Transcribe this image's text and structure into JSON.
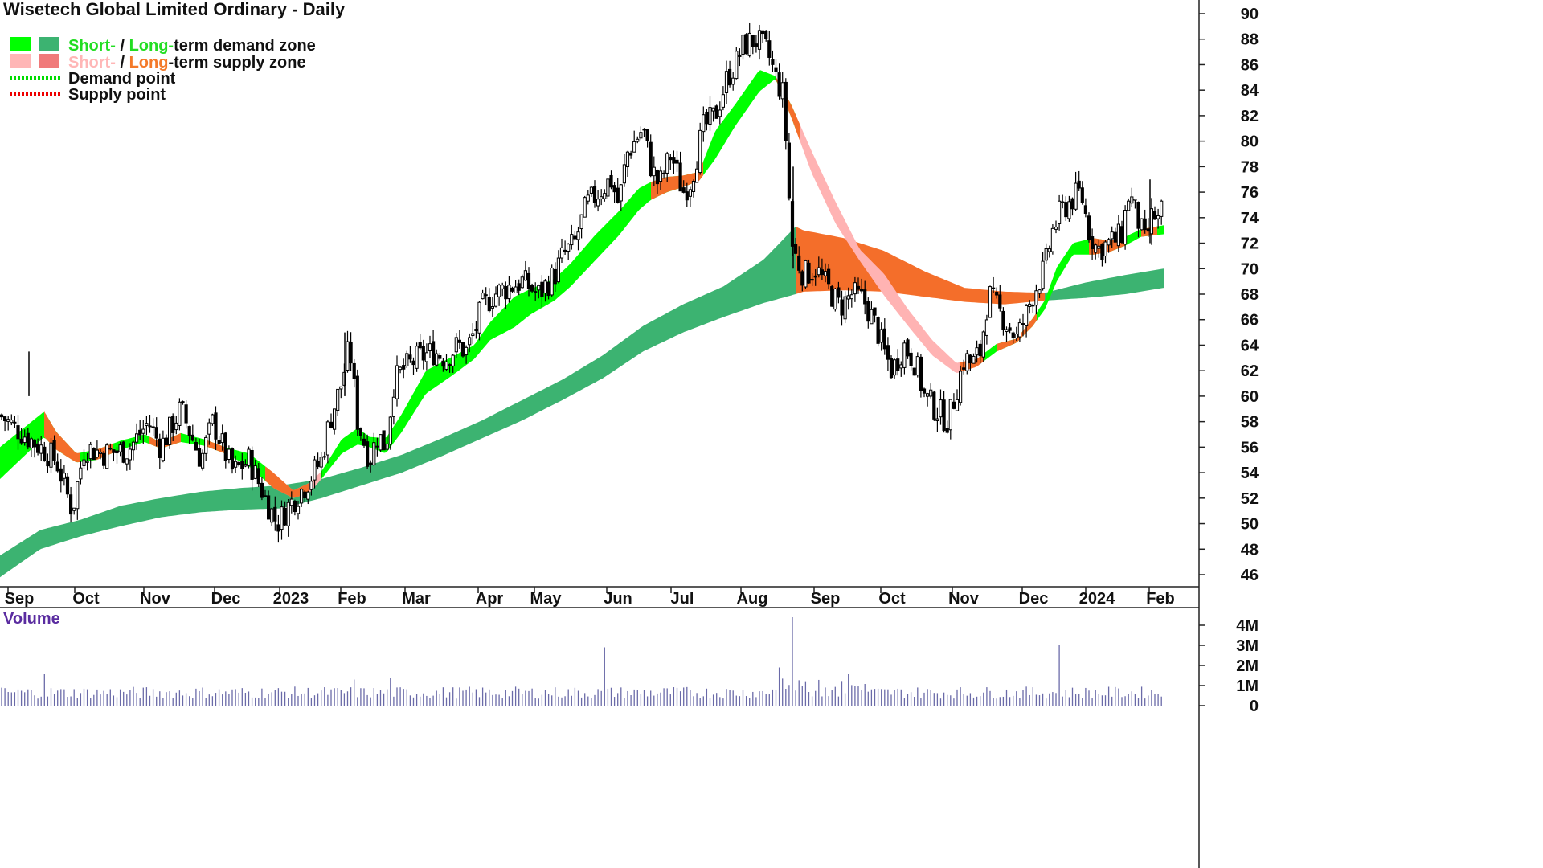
{
  "chart_data": {
    "type": "candlestick",
    "title": "Wisetech Global Limited Ordinary - Daily",
    "legend": [
      {
        "label_parts": [
          {
            "text": "Short-",
            "color": "#22dd22"
          },
          {
            "text": " / ",
            "color": "#111111"
          },
          {
            "text": "Long-",
            "color": "#22dd22"
          },
          {
            "text": "term demand zone",
            "color": "#111111"
          }
        ],
        "swatches": [
          "#00ff00",
          "#3cb371"
        ]
      },
      {
        "label_parts": [
          {
            "text": "Short-",
            "color": "#ffb6b6"
          },
          {
            "text": " / ",
            "color": "#111111"
          },
          {
            "text": "Long-",
            "color": "#f47a2a"
          },
          {
            "text": "-term supply zone",
            "color": "#111111"
          }
        ],
        "swatches": [
          "#ffb6b6",
          "#f08080"
        ]
      },
      {
        "label_parts": [
          {
            "text": "Demand point",
            "color": "#111111"
          }
        ],
        "line": "#00dd00"
      },
      {
        "label_parts": [
          {
            "text": "Supply point",
            "color": "#111111"
          }
        ],
        "line": "#ee0000"
      }
    ],
    "x_ticks": [
      "Sep",
      "Oct",
      "Nov",
      "Dec",
      "2023",
      "Feb",
      "Mar",
      "Apr",
      "May",
      "Jun",
      "Jul",
      "Aug",
      "Sep",
      "Oct",
      "Nov",
      "Dec",
      "2024",
      "Feb"
    ],
    "y_ticks": [
      46,
      48,
      50,
      52,
      54,
      56,
      58,
      60,
      62,
      64,
      66,
      68,
      70,
      72,
      74,
      76,
      78,
      80,
      82,
      84,
      86,
      88,
      90
    ],
    "ylim": [
      44.5,
      91.2
    ],
    "price_path": [
      [
        0,
        58.5
      ],
      [
        20,
        57.5
      ],
      [
        50,
        56
      ],
      [
        70,
        55
      ],
      [
        90,
        51
      ],
      [
        105,
        56
      ],
      [
        130,
        55.5
      ],
      [
        160,
        55.8
      ],
      [
        185,
        58
      ],
      [
        200,
        56
      ],
      [
        225,
        59
      ],
      [
        250,
        55
      ],
      [
        265,
        58
      ],
      [
        290,
        54
      ],
      [
        310,
        55
      ],
      [
        330,
        52
      ],
      [
        345,
        50
      ],
      [
        360,
        51.5
      ],
      [
        380,
        53
      ],
      [
        400,
        55
      ],
      [
        410,
        58
      ],
      [
        425,
        61
      ],
      [
        435,
        64
      ],
      [
        445,
        58
      ],
      [
        460,
        55
      ],
      [
        470,
        57
      ],
      [
        480,
        56
      ],
      [
        490,
        61
      ],
      [
        500,
        62
      ],
      [
        520,
        63
      ],
      [
        540,
        63.5
      ],
      [
        555,
        63
      ],
      [
        570,
        64
      ],
      [
        580,
        63.5
      ],
      [
        590,
        65
      ],
      [
        600,
        67
      ],
      [
        615,
        68
      ],
      [
        630,
        68.5
      ],
      [
        650,
        69
      ],
      [
        670,
        68
      ],
      [
        690,
        69.5
      ],
      [
        700,
        71
      ],
      [
        715,
        72
      ],
      [
        730,
        75
      ],
      [
        745,
        76
      ],
      [
        760,
        77
      ],
      [
        770,
        75
      ],
      [
        780,
        79
      ],
      [
        790,
        80
      ],
      [
        800,
        81
      ],
      [
        810,
        78
      ],
      [
        820,
        76.5
      ],
      [
        835,
        79
      ],
      [
        850,
        76
      ],
      [
        860,
        77
      ],
      [
        875,
        81
      ],
      [
        890,
        82
      ],
      [
        905,
        85
      ],
      [
        915,
        86
      ],
      [
        925,
        87.5
      ],
      [
        940,
        88
      ],
      [
        955,
        87
      ],
      [
        965,
        85
      ],
      [
        975,
        83.5
      ],
      [
        985,
        72
      ],
      [
        990,
        71
      ],
      [
        1000,
        69.5
      ],
      [
        1015,
        70
      ],
      [
        1030,
        68.5
      ],
      [
        1045,
        67
      ],
      [
        1060,
        68
      ],
      [
        1075,
        67.5
      ],
      [
        1090,
        65.5
      ],
      [
        1100,
        63.5
      ],
      [
        1110,
        62
      ],
      [
        1125,
        64
      ],
      [
        1140,
        62.5
      ],
      [
        1150,
        60
      ],
      [
        1165,
        59
      ],
      [
        1180,
        58
      ],
      [
        1190,
        60.5
      ],
      [
        1200,
        63
      ],
      [
        1210,
        62.5
      ],
      [
        1220,
        63.5
      ],
      [
        1230,
        68
      ],
      [
        1240,
        67
      ],
      [
        1250,
        66
      ],
      [
        1265,
        64.5
      ],
      [
        1275,
        66
      ],
      [
        1285,
        68
      ],
      [
        1300,
        70
      ],
      [
        1310,
        73
      ],
      [
        1320,
        74.5
      ],
      [
        1335,
        75.5
      ],
      [
        1345,
        76
      ],
      [
        1355,
        73
      ],
      [
        1365,
        71.5
      ],
      [
        1380,
        72
      ],
      [
        1395,
        72.5
      ],
      [
        1405,
        76
      ],
      [
        1415,
        74
      ],
      [
        1425,
        72
      ],
      [
        1435,
        74.5
      ],
      [
        1440,
        73.5
      ],
      [
        1448,
        75
      ]
    ],
    "short_zone_path": [
      [
        0,
        53.5,
        56
      ],
      [
        55,
        56.8,
        58.8
      ],
      [
        70,
        55.8,
        57.2
      ],
      [
        95,
        54.8,
        55.5
      ],
      [
        120,
        55,
        55.8
      ],
      [
        150,
        55.8,
        56.5
      ],
      [
        180,
        56.4,
        57
      ],
      [
        200,
        55.9,
        56.4
      ],
      [
        225,
        56.4,
        57.1
      ],
      [
        255,
        56.1,
        56.6
      ],
      [
        280,
        55.5,
        56
      ],
      [
        310,
        54.5,
        55.5
      ],
      [
        340,
        52.8,
        54
      ],
      [
        365,
        52,
        52.6
      ],
      [
        385,
        52.4,
        53.2
      ],
      [
        400,
        53.5,
        54.1
      ],
      [
        425,
        55.5,
        56.6
      ],
      [
        445,
        56.2,
        57.5
      ],
      [
        460,
        56,
        56.8
      ],
      [
        480,
        55.5,
        56.7
      ],
      [
        500,
        57.2,
        58.6
      ],
      [
        530,
        60.2,
        62
      ],
      [
        560,
        61.5,
        63
      ],
      [
        590,
        62.9,
        64
      ],
      [
        610,
        64.4,
        65.8
      ],
      [
        640,
        65.4,
        67.8
      ],
      [
        660,
        66.4,
        68.4
      ],
      [
        690,
        67.5,
        69.2
      ],
      [
        710,
        68.6,
        70.4
      ],
      [
        740,
        70.6,
        72.6
      ],
      [
        770,
        72.6,
        74.5
      ],
      [
        795,
        74.6,
        76.3
      ],
      [
        810,
        75.4,
        76.8
      ],
      [
        830,
        76,
        77.2
      ],
      [
        850,
        76.4,
        77.3
      ],
      [
        870,
        76.9,
        77.6
      ],
      [
        890,
        78.6,
        80.8
      ],
      [
        915,
        81.2,
        82.9
      ],
      [
        945,
        83.9,
        85.6
      ],
      [
        965,
        84.9,
        85.1
      ],
      [
        985,
        81.8,
        82.8
      ],
      [
        1010,
        77.5,
        79.2
      ],
      [
        1040,
        73.5,
        75.2
      ],
      [
        1070,
        70.6,
        71.5
      ],
      [
        1100,
        67.9,
        69.6
      ],
      [
        1130,
        65.5,
        66.8
      ],
      [
        1160,
        63.2,
        64.4
      ],
      [
        1190,
        61.8,
        62.6
      ],
      [
        1215,
        62.3,
        62.9
      ],
      [
        1240,
        63.5,
        64.1
      ],
      [
        1265,
        64.2,
        64.5
      ],
      [
        1285,
        65.5,
        66.1
      ],
      [
        1300,
        66.8,
        67.5
      ],
      [
        1315,
        69,
        70.1
      ],
      [
        1335,
        71.1,
        72
      ],
      [
        1360,
        71.1,
        72.4
      ],
      [
        1380,
        71.3,
        72.2
      ],
      [
        1400,
        71.8,
        72.5
      ],
      [
        1420,
        72.5,
        73.1
      ],
      [
        1448,
        72.7,
        73.4
      ]
    ],
    "long_zone_path": [
      [
        0,
        45.8,
        47.5
      ],
      [
        50,
        48,
        49.5
      ],
      [
        100,
        49,
        50.3
      ],
      [
        150,
        49.8,
        51.4
      ],
      [
        200,
        50.5,
        52
      ],
      [
        250,
        50.9,
        52.5
      ],
      [
        300,
        51.1,
        52.8
      ],
      [
        350,
        51.2,
        53
      ],
      [
        400,
        52,
        53.5
      ],
      [
        450,
        53,
        54.4
      ],
      [
        500,
        54,
        55.4
      ],
      [
        550,
        55.3,
        56.7
      ],
      [
        600,
        56.7,
        58.1
      ],
      [
        650,
        58.1,
        59.7
      ],
      [
        700,
        59.7,
        61.3
      ],
      [
        750,
        61.4,
        63.2
      ],
      [
        800,
        63.5,
        65.5
      ],
      [
        850,
        65,
        67.2
      ],
      [
        900,
        66.2,
        68.6
      ],
      [
        950,
        67.3,
        70.7
      ],
      [
        990,
        68,
        73.3
      ],
      [
        1000,
        68.2,
        73
      ],
      [
        1050,
        68.3,
        72.4
      ],
      [
        1100,
        68.2,
        71.4
      ],
      [
        1150,
        67.8,
        69.8
      ],
      [
        1200,
        67.4,
        68.5
      ],
      [
        1250,
        67.2,
        68.2
      ],
      [
        1300,
        67.5,
        68.1
      ],
      [
        1350,
        67.7,
        68.9
      ],
      [
        1400,
        68,
        69.5
      ],
      [
        1448,
        68.5,
        70
      ]
    ],
    "supply_segments_short": [
      [
        335,
        400
      ],
      [
        990,
        1225
      ]
    ],
    "supply_segments_long": [
      [
        990,
        1300
      ]
    ],
    "volume": {
      "label": "Volume",
      "y_ticks": [
        "0",
        "1M",
        "2M",
        "3M",
        "4M"
      ],
      "ylim_millions": [
        0,
        4.5
      ],
      "spikes": [
        [
          53,
          1.6
        ],
        [
          750,
          2.9
        ],
        [
          983,
          4.4
        ],
        [
          1318,
          3.0
        ],
        [
          968,
          1.9
        ],
        [
          1053,
          1.6
        ],
        [
          485,
          1.4
        ],
        [
          438,
          1.3
        ]
      ]
    }
  }
}
